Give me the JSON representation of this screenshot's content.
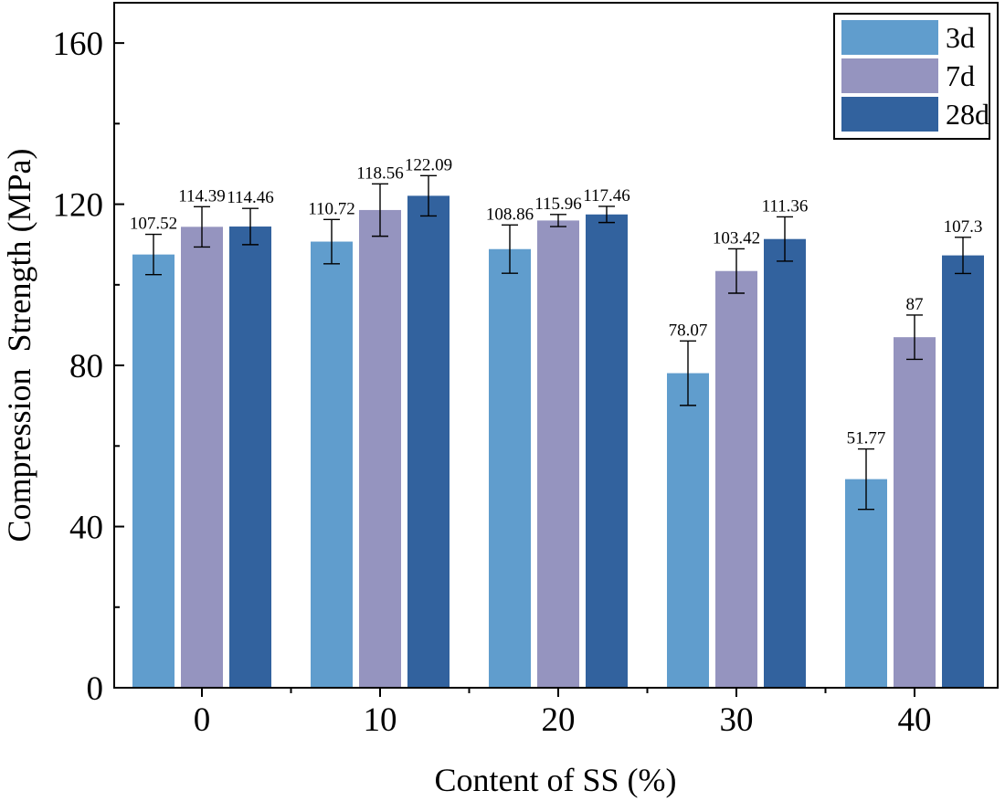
{
  "chart_data": {
    "type": "bar",
    "title": "",
    "xlabel": "Content of SS (%)",
    "ylabel": "Compression  Strength (MPa)",
    "categories": [
      "0",
      "10",
      "20",
      "30",
      "40"
    ],
    "ylim": [
      0,
      170
    ],
    "yticks": [
      0,
      40,
      80,
      120,
      160
    ],
    "legend_position": "top-right",
    "series": [
      {
        "name": "3d",
        "color": "#609dcd",
        "values": [
          107.52,
          110.72,
          108.86,
          78.07,
          51.77
        ],
        "labels": [
          "107.52",
          "110.72",
          "108.86",
          "78.07",
          "51.77"
        ],
        "errors": [
          5,
          5.5,
          6,
          8,
          7.5
        ]
      },
      {
        "name": "7d",
        "color": "#9594bf",
        "values": [
          114.39,
          118.56,
          115.96,
          103.42,
          87
        ],
        "labels": [
          "114.39",
          "118.56",
          "115.96",
          "103.42",
          "87"
        ],
        "errors": [
          5,
          6.5,
          1.5,
          5.5,
          5.5
        ]
      },
      {
        "name": "28d",
        "color": "#32629e",
        "values": [
          114.46,
          122.09,
          117.46,
          111.36,
          107.3
        ],
        "labels": [
          "114.46",
          "122.09",
          "117.46",
          "111.36",
          "107.3"
        ],
        "errors": [
          4.5,
          5,
          2,
          5.5,
          4.5
        ]
      }
    ]
  }
}
